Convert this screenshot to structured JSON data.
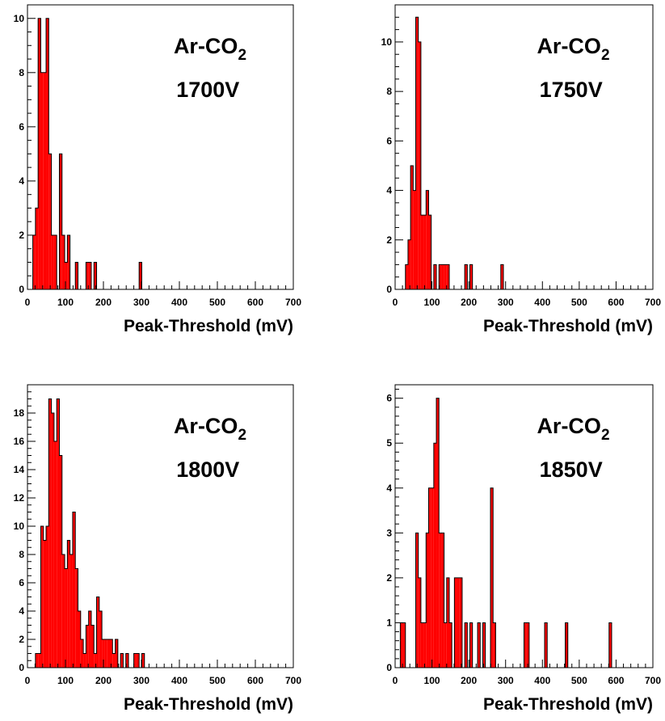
{
  "chart_data": [
    {
      "type": "bar",
      "histogram": true,
      "bin_width": 7,
      "xlabel": "Peak-Threshold (mV)",
      "ylabel": "",
      "xlim": [
        0,
        700
      ],
      "ylim": [
        0,
        10.5
      ],
      "xticks": [
        0,
        100,
        200,
        300,
        400,
        500,
        600,
        700
      ],
      "yticks": [
        0,
        2,
        4,
        6,
        8,
        10
      ],
      "annotation_gas": "Ar-CO",
      "annotation_gas_sub": "2",
      "annotation_voltage": "1700V",
      "color": "#ff0000",
      "bins": [
        {
          "x": 14,
          "y": 2
        },
        {
          "x": 21,
          "y": 3
        },
        {
          "x": 28,
          "y": 10
        },
        {
          "x": 35,
          "y": 8
        },
        {
          "x": 42,
          "y": 8
        },
        {
          "x": 49,
          "y": 10
        },
        {
          "x": 56,
          "y": 5
        },
        {
          "x": 63,
          "y": 2
        },
        {
          "x": 70,
          "y": 2
        },
        {
          "x": 84,
          "y": 5
        },
        {
          "x": 91,
          "y": 2
        },
        {
          "x": 98,
          "y": 1
        },
        {
          "x": 105,
          "y": 2
        },
        {
          "x": 126,
          "y": 1
        },
        {
          "x": 154,
          "y": 1
        },
        {
          "x": 161,
          "y": 1
        },
        {
          "x": 175,
          "y": 1
        },
        {
          "x": 294,
          "y": 1
        }
      ]
    },
    {
      "type": "bar",
      "histogram": true,
      "bin_width": 7,
      "xlabel": "Peak-Threshold (mV)",
      "ylabel": "",
      "xlim": [
        0,
        700
      ],
      "ylim": [
        0,
        11.5
      ],
      "xticks": [
        0,
        100,
        200,
        300,
        400,
        500,
        600,
        700
      ],
      "yticks": [
        0,
        2,
        4,
        6,
        8,
        10
      ],
      "annotation_gas": "Ar-CO",
      "annotation_gas_sub": "2",
      "annotation_voltage": "1750V",
      "color": "#ff0000",
      "bins": [
        {
          "x": 28,
          "y": 1
        },
        {
          "x": 35,
          "y": 2
        },
        {
          "x": 42,
          "y": 5
        },
        {
          "x": 49,
          "y": 4
        },
        {
          "x": 56,
          "y": 11
        },
        {
          "x": 63,
          "y": 10
        },
        {
          "x": 70,
          "y": 3
        },
        {
          "x": 77,
          "y": 3
        },
        {
          "x": 84,
          "y": 4
        },
        {
          "x": 91,
          "y": 3
        },
        {
          "x": 105,
          "y": 1
        },
        {
          "x": 119,
          "y": 1
        },
        {
          "x": 126,
          "y": 1
        },
        {
          "x": 133,
          "y": 1
        },
        {
          "x": 140,
          "y": 1
        },
        {
          "x": 189,
          "y": 1
        },
        {
          "x": 203,
          "y": 1
        },
        {
          "x": 287,
          "y": 1
        }
      ]
    },
    {
      "type": "bar",
      "histogram": true,
      "bin_width": 7,
      "xlabel": "Peak-Threshold (mV)",
      "ylabel": "",
      "xlim": [
        0,
        700
      ],
      "ylim": [
        0,
        20
      ],
      "xticks": [
        0,
        100,
        200,
        300,
        400,
        500,
        600,
        700
      ],
      "yticks": [
        0,
        2,
        4,
        6,
        8,
        10,
        12,
        14,
        16,
        18
      ],
      "annotation_gas": "Ar-CO",
      "annotation_gas_sub": "2",
      "annotation_voltage": "1800V",
      "color": "#ff0000",
      "bins": [
        {
          "x": 21,
          "y": 1
        },
        {
          "x": 28,
          "y": 1
        },
        {
          "x": 35,
          "y": 10
        },
        {
          "x": 42,
          "y": 9
        },
        {
          "x": 49,
          "y": 10
        },
        {
          "x": 56,
          "y": 19
        },
        {
          "x": 63,
          "y": 18
        },
        {
          "x": 70,
          "y": 16
        },
        {
          "x": 77,
          "y": 19
        },
        {
          "x": 84,
          "y": 15
        },
        {
          "x": 91,
          "y": 8
        },
        {
          "x": 98,
          "y": 7
        },
        {
          "x": 105,
          "y": 9
        },
        {
          "x": 112,
          "y": 8
        },
        {
          "x": 119,
          "y": 11
        },
        {
          "x": 126,
          "y": 7
        },
        {
          "x": 133,
          "y": 4
        },
        {
          "x": 140,
          "y": 2
        },
        {
          "x": 147,
          "y": 1
        },
        {
          "x": 154,
          "y": 3
        },
        {
          "x": 161,
          "y": 4
        },
        {
          "x": 168,
          "y": 3
        },
        {
          "x": 175,
          "y": 1
        },
        {
          "x": 182,
          "y": 5
        },
        {
          "x": 189,
          "y": 4
        },
        {
          "x": 196,
          "y": 2
        },
        {
          "x": 203,
          "y": 2
        },
        {
          "x": 210,
          "y": 2
        },
        {
          "x": 217,
          "y": 2
        },
        {
          "x": 224,
          "y": 1
        },
        {
          "x": 231,
          "y": 2
        },
        {
          "x": 245,
          "y": 1
        },
        {
          "x": 259,
          "y": 1
        },
        {
          "x": 280,
          "y": 1
        },
        {
          "x": 287,
          "y": 1
        },
        {
          "x": 301,
          "y": 1
        }
      ]
    },
    {
      "type": "bar",
      "histogram": true,
      "bin_width": 7,
      "xlabel": "Peak-Threshold (mV)",
      "ylabel": "",
      "xlim": [
        0,
        700
      ],
      "ylim": [
        0,
        6.3
      ],
      "xticks": [
        0,
        100,
        200,
        300,
        400,
        500,
        600,
        700
      ],
      "yticks": [
        0,
        1,
        2,
        3,
        4,
        5,
        6
      ],
      "annotation_gas": "Ar-CO",
      "annotation_gas_sub": "2",
      "annotation_voltage": "1850V",
      "color": "#ff0000",
      "bins": [
        {
          "x": 14,
          "y": 1
        },
        {
          "x": 21,
          "y": 1
        },
        {
          "x": 56,
          "y": 3
        },
        {
          "x": 63,
          "y": 2
        },
        {
          "x": 70,
          "y": 1
        },
        {
          "x": 77,
          "y": 1
        },
        {
          "x": 84,
          "y": 3
        },
        {
          "x": 91,
          "y": 4
        },
        {
          "x": 98,
          "y": 4
        },
        {
          "x": 105,
          "y": 5
        },
        {
          "x": 112,
          "y": 6
        },
        {
          "x": 119,
          "y": 3
        },
        {
          "x": 126,
          "y": 3
        },
        {
          "x": 133,
          "y": 1
        },
        {
          "x": 140,
          "y": 2
        },
        {
          "x": 147,
          "y": 1
        },
        {
          "x": 161,
          "y": 2
        },
        {
          "x": 168,
          "y": 2
        },
        {
          "x": 175,
          "y": 2
        },
        {
          "x": 189,
          "y": 1
        },
        {
          "x": 203,
          "y": 1
        },
        {
          "x": 224,
          "y": 1
        },
        {
          "x": 238,
          "y": 1
        },
        {
          "x": 259,
          "y": 4
        },
        {
          "x": 266,
          "y": 1
        },
        {
          "x": 350,
          "y": 1
        },
        {
          "x": 357,
          "y": 1
        },
        {
          "x": 406,
          "y": 1
        },
        {
          "x": 462,
          "y": 1
        },
        {
          "x": 581,
          "y": 1
        }
      ]
    }
  ]
}
